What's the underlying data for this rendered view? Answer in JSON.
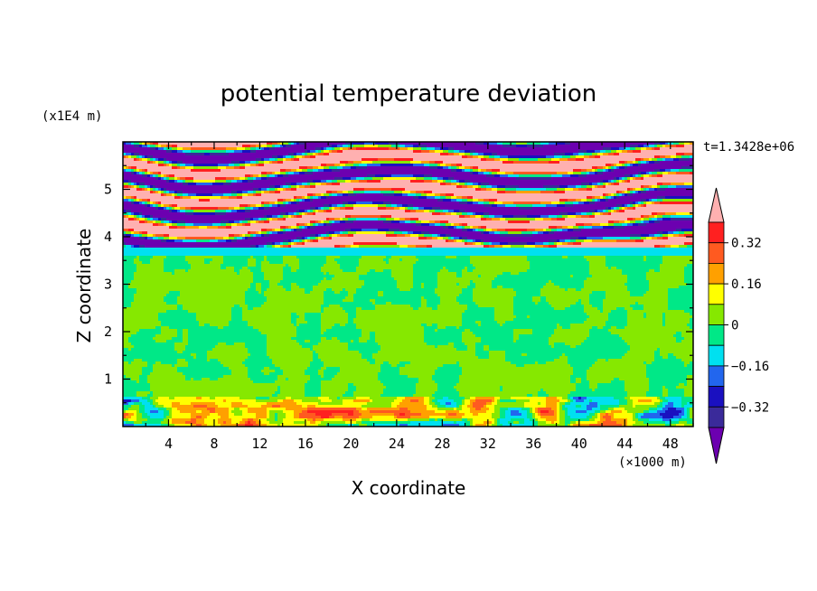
{
  "chart_data": {
    "type": "heatmap",
    "title": "potential temperature deviation",
    "xlabel": "X coordinate",
    "ylabel": "Z coordinate",
    "x_unit": "(×1000 m)",
    "y_unit": "(x1E4 m)",
    "time_label": "t=1.3428e+06",
    "xlim": [
      0,
      50
    ],
    "ylim": [
      0,
      6
    ],
    "x_ticks": [
      4,
      8,
      12,
      16,
      20,
      24,
      28,
      32,
      36,
      40,
      44,
      48
    ],
    "y_ticks": [
      1,
      2,
      3,
      4,
      5
    ],
    "colorbar": {
      "tick_labels": [
        "0.32",
        "0.16",
        "0",
        "−0.16",
        "−0.32"
      ],
      "tick_values": [
        0.32,
        0.16,
        0,
        -0.16,
        -0.32
      ],
      "levels": [
        -0.4,
        -0.32,
        -0.24,
        -0.16,
        -0.08,
        0,
        0.08,
        0.16,
        0.24,
        0.32,
        0.4
      ],
      "colors": [
        "#6c00b0",
        "#3a2a9a",
        "#1a10c0",
        "#2266ee",
        "#00e0f0",
        "#00e887",
        "#86e800",
        "#ffff00",
        "#ffa000",
        "#ff5a20",
        "#ff2020",
        "#ffb0b0"
      ]
    },
    "layers": [
      {
        "z_range": [
          0,
          0.6
        ],
        "pattern": "mixed surface anomalies (mostly 0 to 0.08, with warm and cold patches)"
      },
      {
        "z_range": [
          0.6,
          3.6
        ],
        "pattern": "mixed 0 to 0.08 and -0.08 to 0"
      },
      {
        "z_range": [
          3.6,
          3.8
        ],
        "pattern": "-0.16 to -0.08 band"
      },
      {
        "z_range": [
          3.8,
          6.0
        ],
        "pattern": "alternating strong warm (>0.4) and cold (<-0.4) bands"
      }
    ]
  }
}
